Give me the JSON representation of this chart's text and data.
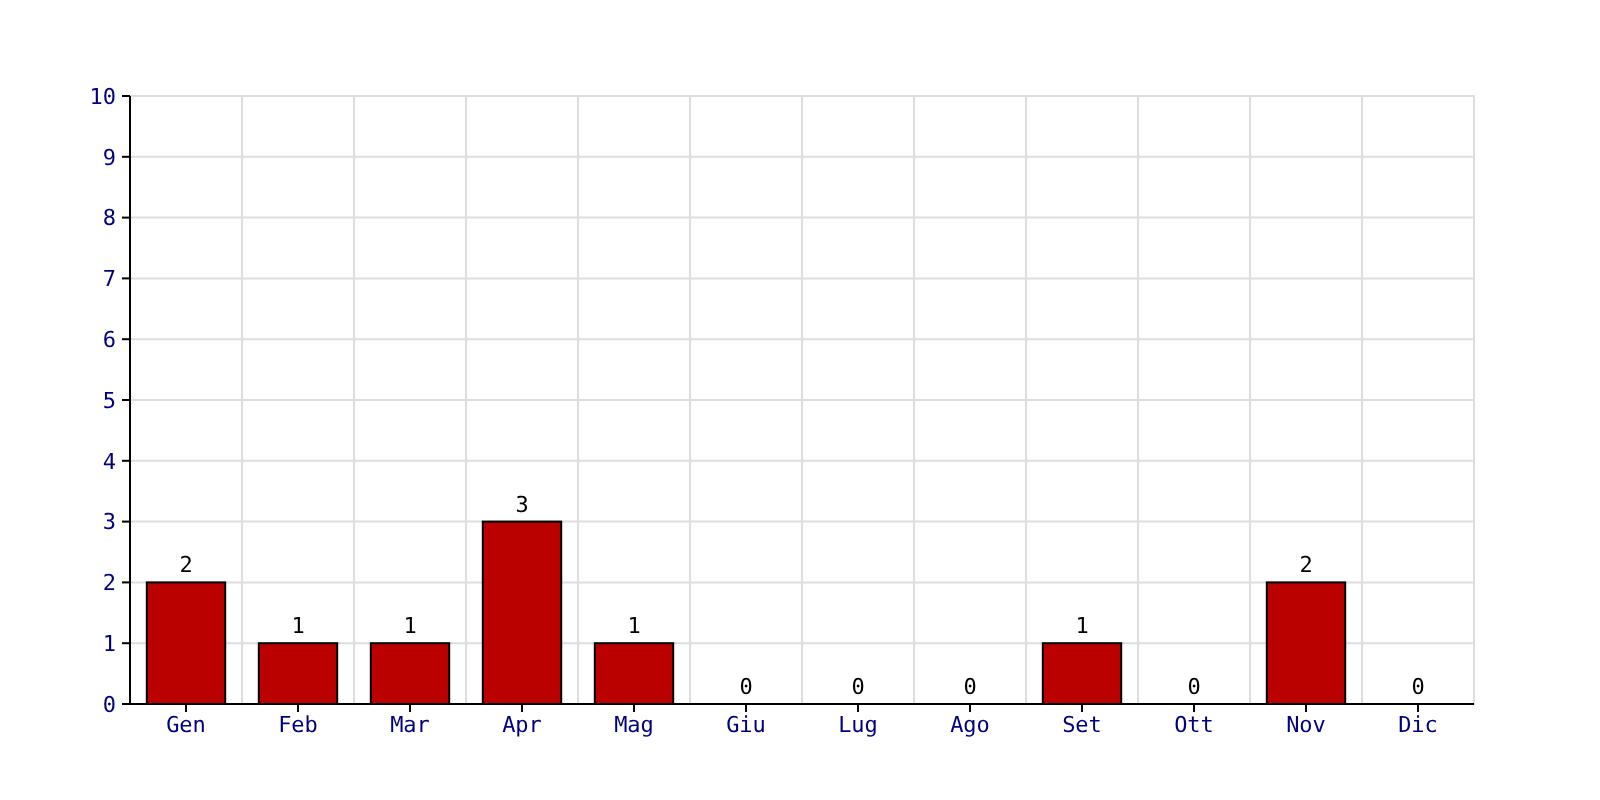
{
  "chart_data": {
    "type": "bar",
    "categories": [
      "Gen",
      "Feb",
      "Mar",
      "Apr",
      "Mag",
      "Giu",
      "Lug",
      "Ago",
      "Set",
      "Ott",
      "Nov",
      "Dic"
    ],
    "values": [
      2,
      1,
      1,
      3,
      1,
      0,
      0,
      0,
      1,
      0,
      2,
      0
    ],
    "color": "#bb0000",
    "ylim": [
      0,
      10
    ],
    "yticks": [
      0,
      1,
      2,
      3,
      4,
      5,
      6,
      7,
      8,
      9,
      10
    ],
    "grid": true,
    "data_labels": true
  }
}
